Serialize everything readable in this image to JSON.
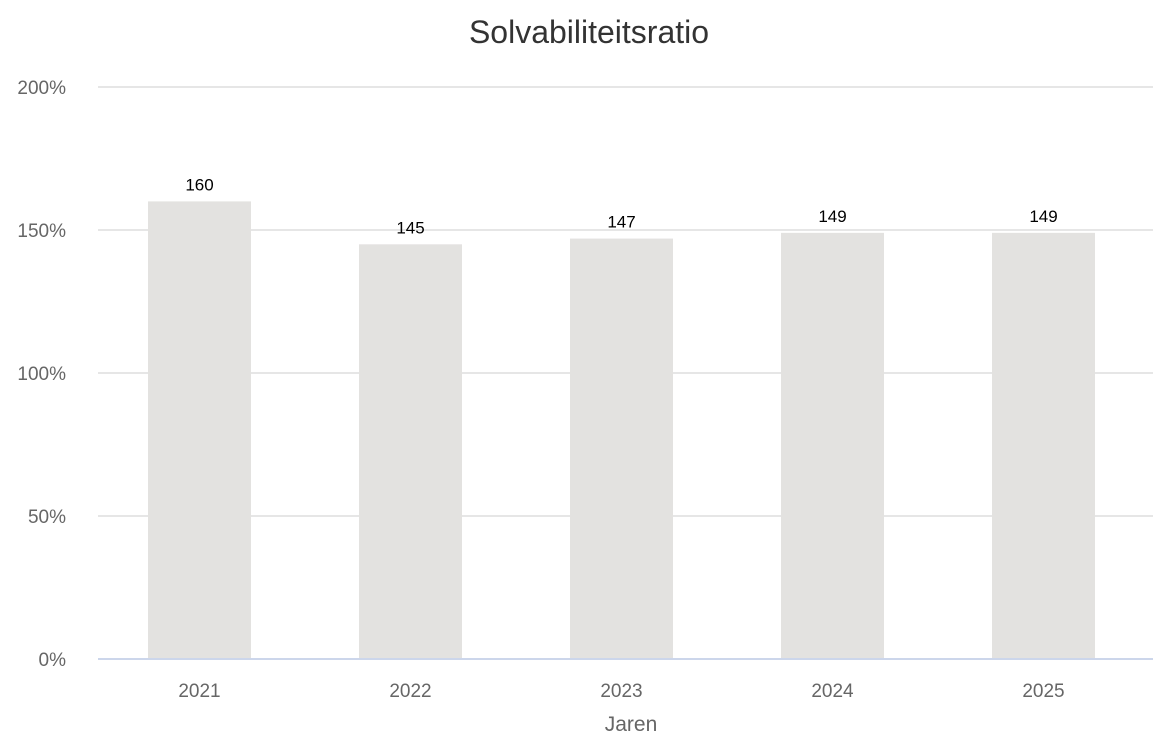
{
  "chart_data": {
    "type": "bar",
    "title": "Solvabiliteitsratio",
    "xlabel": "Jaren",
    "ylabel": "",
    "categories": [
      "2021",
      "2022",
      "2023",
      "2024",
      "2025"
    ],
    "values": [
      160,
      145,
      147,
      149,
      149
    ],
    "data_labels": [
      "160",
      "145",
      "147",
      "149",
      "149"
    ],
    "ylim": [
      0,
      200
    ],
    "yticks": [
      0,
      50,
      100,
      150,
      200
    ],
    "ytick_labels": [
      "0%",
      "50%",
      "100%",
      "150%",
      "200%"
    ],
    "grid": true,
    "legend": "none",
    "colors": {
      "bar": "#e3e2e0",
      "grid": "#e6e6e6",
      "axis": "#ccd6eb"
    }
  }
}
